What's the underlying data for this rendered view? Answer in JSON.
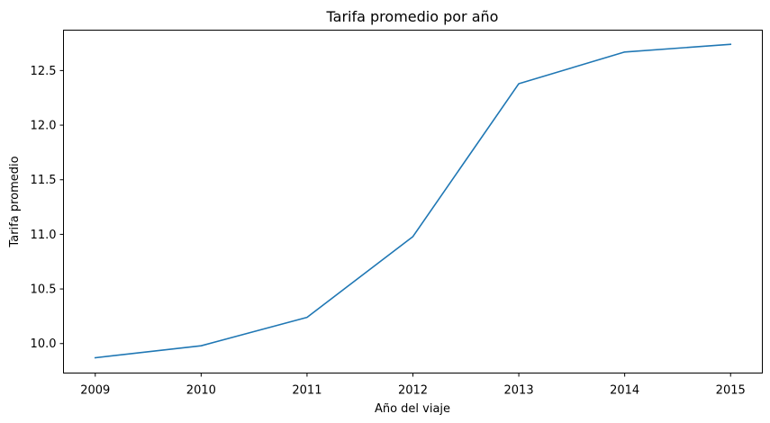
{
  "chart_data": {
    "type": "line",
    "title": "Tarifa promedio por año",
    "xlabel": "Año del viaje",
    "ylabel": "Tarifa promedio",
    "x": [
      2009,
      2010,
      2011,
      2012,
      2013,
      2014,
      2015
    ],
    "series": [
      {
        "values": [
          9.87,
          9.98,
          10.24,
          10.98,
          12.38,
          12.67,
          12.74
        ],
        "color": "#1f77b4"
      }
    ],
    "xlim": [
      2008.7,
      2015.3
    ],
    "ylim": [
      9.73,
      12.87
    ],
    "xticks": [
      "2009",
      "2010",
      "2011",
      "2012",
      "2013",
      "2014",
      "2015"
    ],
    "yticks": [
      "10.0",
      "10.5",
      "11.0",
      "11.5",
      "12.0",
      "12.5"
    ],
    "grid": false,
    "legend": "none"
  }
}
